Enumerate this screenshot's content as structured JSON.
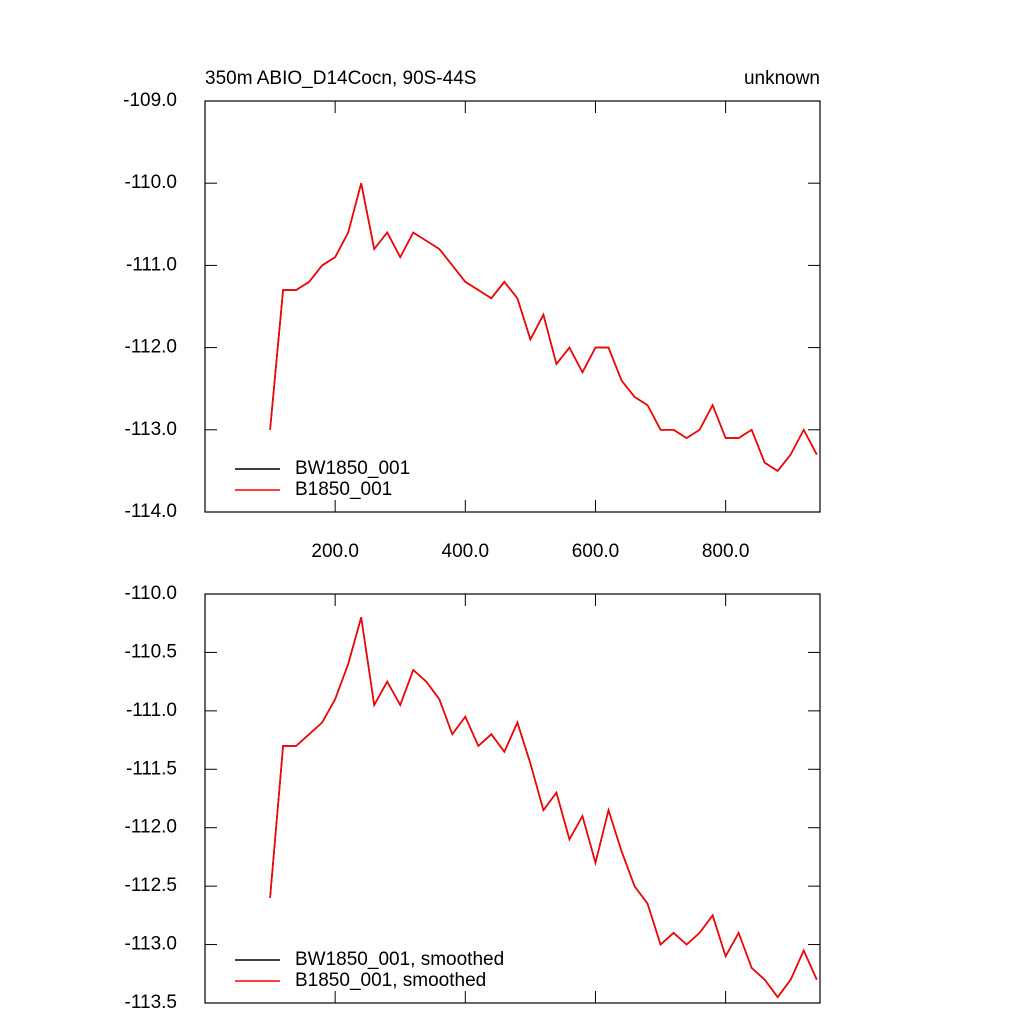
{
  "chart_data": [
    {
      "type": "line",
      "title": "350m ABIO_D14Cocn, 90S-44S",
      "subtitle": "unknown",
      "x": [
        100,
        120,
        140,
        160,
        180,
        200,
        220,
        240,
        260,
        280,
        300,
        320,
        340,
        360,
        380,
        400,
        420,
        440,
        460,
        480,
        500,
        520,
        540,
        560,
        580,
        600,
        620,
        640,
        660,
        680,
        700,
        720,
        740,
        760,
        780,
        800,
        820,
        840,
        860,
        880,
        900,
        920,
        940
      ],
      "series": [
        {
          "name": "BW1850_001",
          "color": "#000000",
          "values": [
            -113.0,
            -111.3,
            -111.3,
            -111.2,
            -111.0,
            -110.9,
            -110.6,
            -110.0,
            -110.8,
            -110.6,
            -110.9,
            -110.6,
            -110.7,
            -110.8,
            -111.0,
            -111.2,
            -111.3,
            -111.4,
            -111.2,
            -111.4,
            -111.9,
            -111.6,
            -112.2,
            -112.0,
            -112.3,
            -112.0,
            -112.0,
            -112.4,
            -112.6,
            -112.7,
            -113.0,
            -113.0,
            -113.1,
            -113.0,
            -112.7,
            -113.1,
            -113.1,
            -113.0,
            -113.4,
            -113.5,
            -113.3,
            -113.0,
            -113.3
          ]
        },
        {
          "name": "B1850_001",
          "color": "#ff0000",
          "values": [
            -113.0,
            -111.3,
            -111.3,
            -111.2,
            -111.0,
            -110.9,
            -110.6,
            -110.0,
            -110.8,
            -110.6,
            -110.9,
            -110.6,
            -110.7,
            -110.8,
            -111.0,
            -111.2,
            -111.3,
            -111.4,
            -111.2,
            -111.4,
            -111.9,
            -111.6,
            -112.2,
            -112.0,
            -112.3,
            -112.0,
            -112.0,
            -112.4,
            -112.6,
            -112.7,
            -113.0,
            -113.0,
            -113.1,
            -113.0,
            -112.7,
            -113.1,
            -113.1,
            -113.0,
            -113.4,
            -113.5,
            -113.3,
            -113.0,
            -113.3
          ]
        }
      ],
      "xlim": [
        0,
        945
      ],
      "xticks": [
        {
          "value": 200,
          "label": "200.0"
        },
        {
          "value": 400,
          "label": "400.0"
        },
        {
          "value": 600,
          "label": "600.0"
        },
        {
          "value": 800,
          "label": "800.0"
        }
      ],
      "ylim": [
        -114,
        -109
      ],
      "yticks": [
        {
          "value": -114,
          "label": "-114.0"
        },
        {
          "value": -113,
          "label": "-113.0"
        },
        {
          "value": -112,
          "label": "-112.0"
        },
        {
          "value": -111,
          "label": "-111.0"
        },
        {
          "value": -110,
          "label": "-110.0"
        },
        {
          "value": -109,
          "label": "-109.0"
        }
      ],
      "legend": "lower left"
    },
    {
      "type": "line",
      "x": [
        100,
        120,
        140,
        160,
        180,
        200,
        220,
        240,
        260,
        280,
        300,
        320,
        340,
        360,
        380,
        400,
        420,
        440,
        460,
        480,
        500,
        520,
        540,
        560,
        580,
        600,
        620,
        640,
        660,
        680,
        700,
        720,
        740,
        760,
        780,
        800,
        820,
        840,
        860,
        880,
        900,
        920,
        940
      ],
      "series": [
        {
          "name": "BW1850_001, smoothed",
          "color": "#000000",
          "values": [
            -112.6,
            -111.3,
            -111.3,
            -111.2,
            -111.1,
            -110.9,
            -110.6,
            -110.2,
            -110.95,
            -110.75,
            -110.95,
            -110.65,
            -110.75,
            -110.9,
            -111.2,
            -111.05,
            -111.3,
            -111.2,
            -111.35,
            -111.1,
            -111.45,
            -111.85,
            -111.7,
            -112.1,
            -111.9,
            -112.3,
            -111.85,
            -112.2,
            -112.5,
            -112.65,
            -113.0,
            -112.9,
            -113.0,
            -112.9,
            -112.75,
            -113.1,
            -112.9,
            -113.2,
            -113.3,
            -113.45,
            -113.3,
            -113.05,
            -113.3
          ]
        },
        {
          "name": "B1850_001, smoothed",
          "color": "#ff0000",
          "values": [
            -112.6,
            -111.3,
            -111.3,
            -111.2,
            -111.1,
            -110.9,
            -110.6,
            -110.2,
            -110.95,
            -110.75,
            -110.95,
            -110.65,
            -110.75,
            -110.9,
            -111.2,
            -111.05,
            -111.3,
            -111.2,
            -111.35,
            -111.1,
            -111.45,
            -111.85,
            -111.7,
            -112.1,
            -111.9,
            -112.3,
            -111.85,
            -112.2,
            -112.5,
            -112.65,
            -113.0,
            -112.9,
            -113.0,
            -112.9,
            -112.75,
            -113.1,
            -112.9,
            -113.2,
            -113.3,
            -113.45,
            -113.3,
            -113.05,
            -113.3
          ]
        }
      ],
      "xlim": [
        0,
        945
      ],
      "xticks": [
        200,
        400,
        600,
        800
      ],
      "ylim": [
        -113.5,
        -110
      ],
      "yticks": [
        {
          "value": -113.5,
          "label": "-113.5"
        },
        {
          "value": -113,
          "label": "-113.0"
        },
        {
          "value": -112.5,
          "label": "-112.5"
        },
        {
          "value": -112,
          "label": "-112.0"
        },
        {
          "value": -111.5,
          "label": "-111.5"
        },
        {
          "value": -111,
          "label": "-111.0"
        },
        {
          "value": -110.5,
          "label": "-110.5"
        },
        {
          "value": -110,
          "label": "-110.0"
        }
      ],
      "legend": "lower left"
    }
  ]
}
